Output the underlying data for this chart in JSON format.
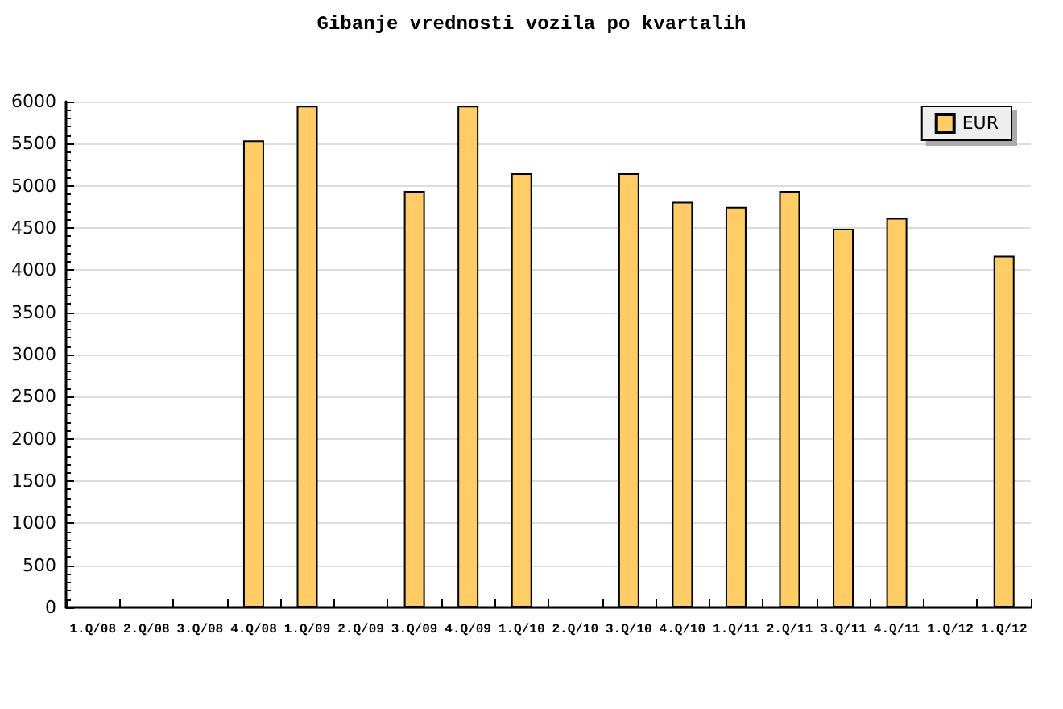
{
  "chart_data": {
    "type": "bar",
    "title": "Gibanje vrednosti vozila po kvartalih",
    "categories": [
      "1.Q/08",
      "2.Q/08",
      "3.Q/08",
      "4.Q/08",
      "1.Q/09",
      "2.Q/09",
      "3.Q/09",
      "4.Q/09",
      "1.Q/10",
      "2.Q/10",
      "3.Q/10",
      "4.Q/10",
      "1.Q/11",
      "2.Q/11",
      "3.Q/11",
      "4.Q/11",
      "1.Q/12",
      "1.Q/12"
    ],
    "series": [
      {
        "name": "EUR",
        "color": "#ffcc66",
        "values": [
          null,
          null,
          null,
          5540,
          5950,
          null,
          4940,
          5950,
          5150,
          null,
          5150,
          4810,
          4750,
          4940,
          4490,
          4620,
          null,
          4170
        ]
      }
    ],
    "ylim": [
      0,
      6000
    ],
    "yticks": [
      0,
      500,
      1000,
      1500,
      2000,
      2500,
      3000,
      3500,
      4000,
      4500,
      5000,
      5500,
      6000
    ],
    "grid": "y",
    "legend": "top right"
  }
}
